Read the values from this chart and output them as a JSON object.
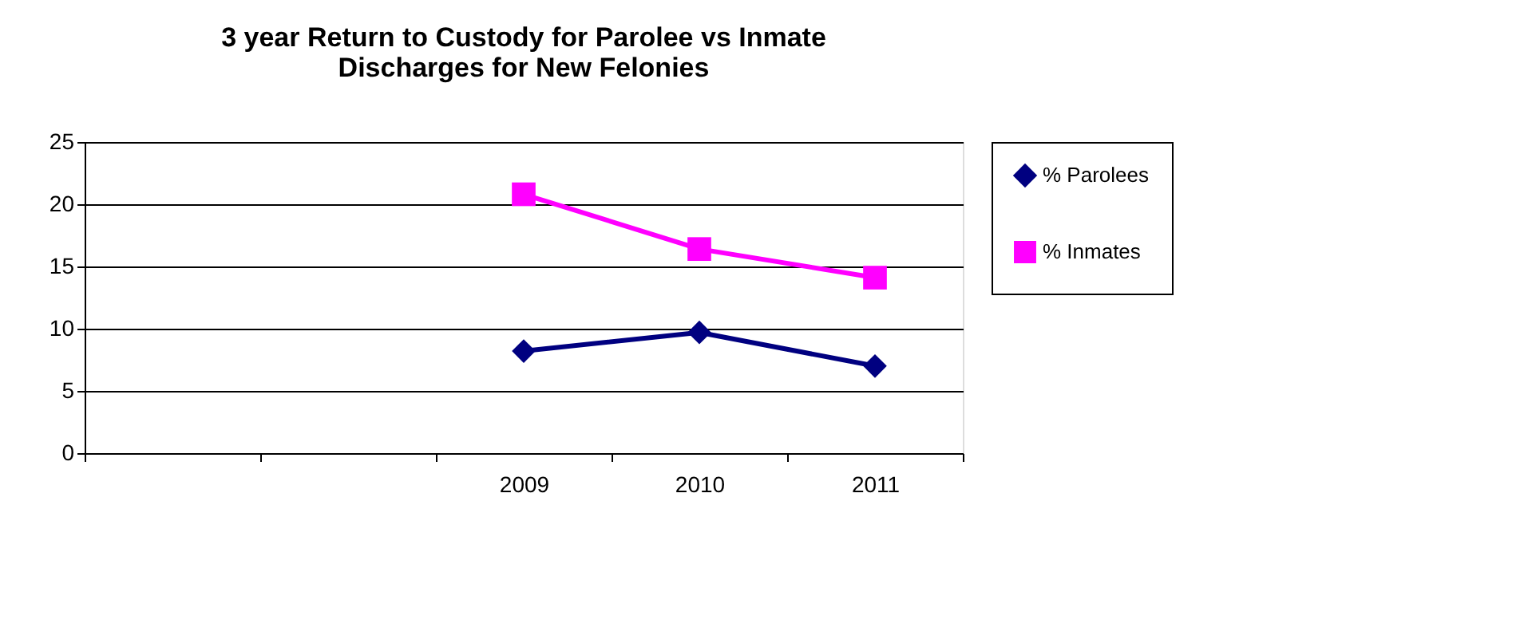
{
  "chart_data": {
    "type": "line",
    "title": "3 year Return to Custody  for Parolee vs Inmate\nDischarges for New Felonies",
    "categories": [
      null,
      null,
      "2009",
      "2010",
      "2011"
    ],
    "series": [
      {
        "name": "% Parolees",
        "color": "#000080",
        "marker": "diamond",
        "values": [
          null,
          null,
          8.2,
          9.7,
          7.0
        ]
      },
      {
        "name": "% Inmates",
        "color": "#ff00ff",
        "marker": "square",
        "values": [
          null,
          null,
          20.8,
          16.4,
          14.1
        ]
      }
    ],
    "ylim": [
      0,
      25
    ],
    "yticks": [
      0,
      5,
      10,
      15,
      20,
      25
    ],
    "grid": "y",
    "legend": "right",
    "line_style": "solid"
  }
}
